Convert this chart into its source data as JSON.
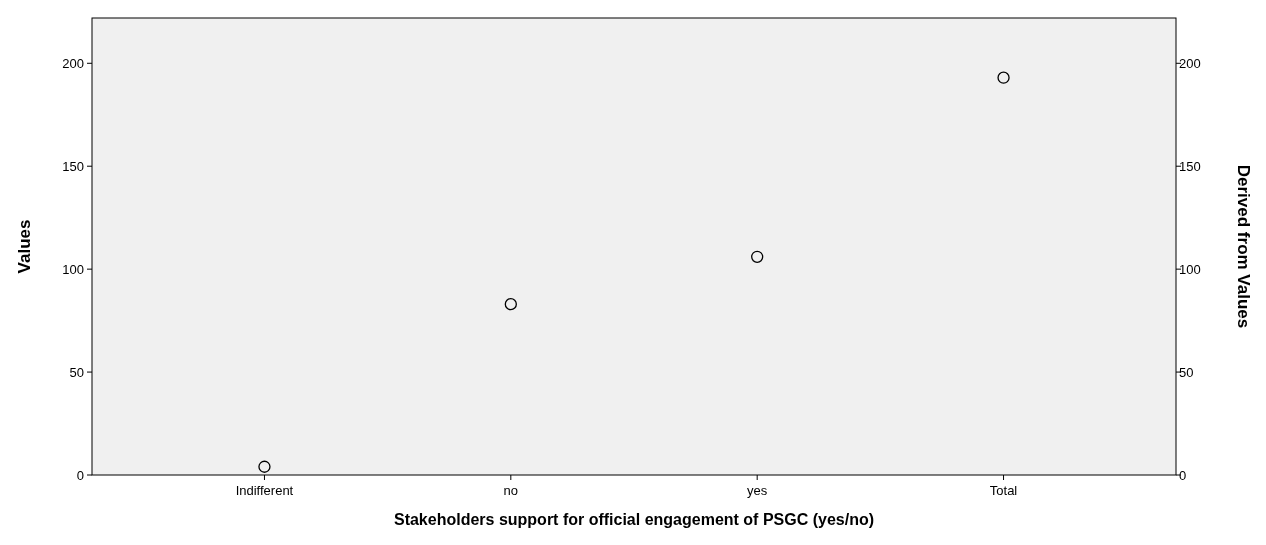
{
  "chart_data": {
    "type": "scatter",
    "xlabel": "Stakeholders support for official engagement of PSGC (yes/no)",
    "ylabel": "Values",
    "y2label": "Derived from Values",
    "categories": [
      "Indifferent",
      "no",
      "yes",
      "Total"
    ],
    "values": [
      4,
      83,
      106,
      193
    ],
    "color": "#000000",
    "marker": "circle",
    "ylim": [
      0,
      222
    ],
    "yticks": [
      0,
      50,
      100,
      150,
      200
    ],
    "y2lim": [
      0,
      222
    ],
    "y2ticks": [
      0,
      50,
      100,
      150,
      200
    ],
    "grid": false
  }
}
